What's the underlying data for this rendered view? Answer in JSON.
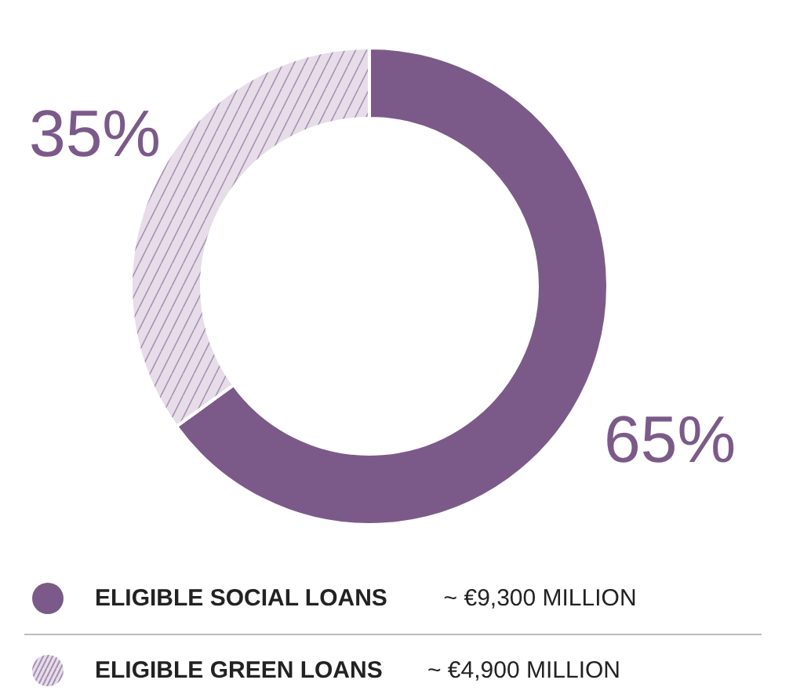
{
  "chart_data": {
    "type": "donut",
    "categories": [
      "ELIGIBLE SOCIAL LOANS",
      "ELIGIBLE GREEN LOANS"
    ],
    "values": [
      65,
      35
    ],
    "colors": [
      "#7b5a8a",
      "#e6dde9"
    ],
    "value_labels": [
      "65%",
      "35%"
    ],
    "annotations": [
      "~ €9,300 MILLION",
      "~ €4,900 MILLION"
    ],
    "legend": "bottom"
  }
}
